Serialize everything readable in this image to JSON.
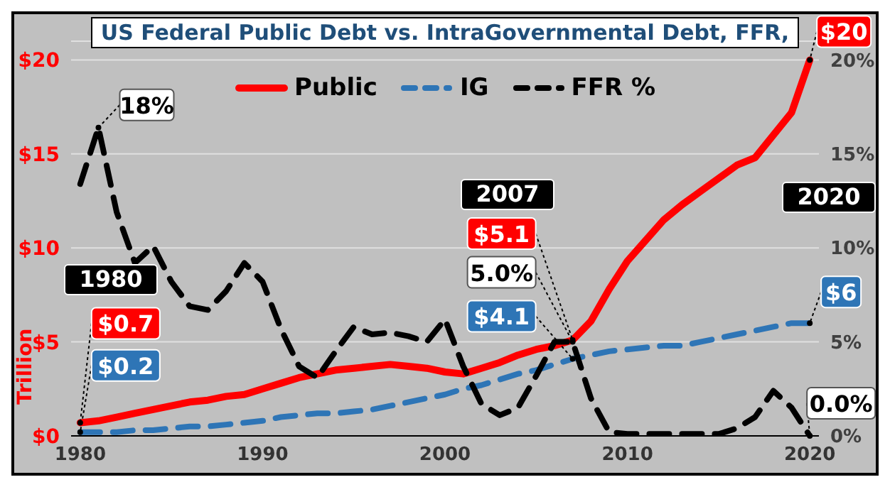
{
  "chart_data": {
    "type": "line",
    "title": "US Federal Public Debt vs. IntraGovernmental Debt, FFR,",
    "ylabel": "Trillion",
    "x": [
      1980,
      1981,
      1982,
      1983,
      1984,
      1985,
      1986,
      1987,
      1988,
      1989,
      1990,
      1991,
      1992,
      1993,
      1994,
      1995,
      1996,
      1997,
      1998,
      1999,
      2000,
      2001,
      2002,
      2003,
      2004,
      2005,
      2006,
      2007,
      2008,
      2009,
      2010,
      2011,
      2012,
      2013,
      2014,
      2015,
      2016,
      2017,
      2018,
      2019,
      2020
    ],
    "series": [
      {
        "name": "Public",
        "color": "#ff0000",
        "line_style": "solid",
        "values": [
          0.7,
          0.8,
          1.0,
          1.2,
          1.4,
          1.6,
          1.8,
          1.9,
          2.1,
          2.2,
          2.5,
          2.8,
          3.1,
          3.3,
          3.5,
          3.6,
          3.7,
          3.8,
          3.7,
          3.6,
          3.4,
          3.3,
          3.6,
          3.9,
          4.3,
          4.6,
          4.8,
          5.1,
          6.1,
          7.8,
          9.3,
          10.4,
          11.5,
          12.3,
          13.0,
          13.7,
          14.4,
          14.8,
          16.0,
          17.2,
          20.0
        ]
      },
      {
        "name": "IG",
        "color": "#2e75b6",
        "line_style": "dashed",
        "values": [
          0.2,
          0.2,
          0.2,
          0.3,
          0.3,
          0.4,
          0.5,
          0.5,
          0.6,
          0.7,
          0.8,
          1.0,
          1.1,
          1.2,
          1.2,
          1.3,
          1.4,
          1.6,
          1.8,
          2.0,
          2.2,
          2.5,
          2.7,
          3.0,
          3.3,
          3.5,
          3.8,
          4.1,
          4.3,
          4.5,
          4.6,
          4.7,
          4.8,
          4.8,
          5.0,
          5.2,
          5.4,
          5.6,
          5.8,
          6.0,
          6.0
        ]
      },
      {
        "name": "FFR %",
        "color": "#000000",
        "line_style": "dashed",
        "axis": "y2",
        "values": [
          13.4,
          16.4,
          11.9,
          9.2,
          10.1,
          8.2,
          6.9,
          6.7,
          7.7,
          9.2,
          8.2,
          5.7,
          3.7,
          3.1,
          4.5,
          5.8,
          5.4,
          5.5,
          5.3,
          5.0,
          6.2,
          3.7,
          1.7,
          1.1,
          1.5,
          3.2,
          5.0,
          5.0,
          2.0,
          0.2,
          0.1,
          0.1,
          0.1,
          0.1,
          0.1,
          0.1,
          0.4,
          1.0,
          2.4,
          1.5,
          0.0
        ]
      }
    ],
    "xlim": [
      1979.5,
      2020.5
    ],
    "xticks": [
      1980,
      1990,
      2000,
      2010,
      2020
    ],
    "ylim": [
      0,
      21
    ],
    "yticks": [
      {
        "value": 0,
        "label": "$0"
      },
      {
        "value": 5,
        "label": "$5"
      },
      {
        "value": 10,
        "label": "$10"
      },
      {
        "value": 15,
        "label": "$15"
      },
      {
        "value": 20,
        "label": "$20"
      }
    ],
    "y2lim": [
      0,
      21
    ],
    "y2ticks": [
      {
        "value": 0,
        "label": "0%"
      },
      {
        "value": 5,
        "label": "5%"
      },
      {
        "value": 10,
        "label": "10%"
      },
      {
        "value": 15,
        "label": "15%"
      },
      {
        "value": 20,
        "label": "20%"
      }
    ],
    "grid": "y",
    "legend": "top",
    "marker": "none",
    "annotations": [
      {
        "text": "18%",
        "x": 1981,
        "y": 16.4
      },
      "1980",
      {
        "text": "$0.7",
        "x": 1980,
        "y": 0.7
      },
      {
        "text": "$0.2",
        "x": 1980,
        "y": 0.2
      },
      "2007",
      {
        "text": "$5.1",
        "x": 2007,
        "y": 5.1
      },
      {
        "text": "5.0%",
        "x": 2007,
        "y": 5.0
      },
      {
        "text": "$4.1",
        "x": 2007,
        "y": 4.1
      },
      "2020",
      {
        "text": "$20",
        "x": 2020,
        "y": 20.0
      },
      {
        "text": "$6",
        "x": 2020,
        "y": 6.0
      },
      {
        "text": "0.0%",
        "x": 2020,
        "y": 0.0
      }
    ]
  }
}
